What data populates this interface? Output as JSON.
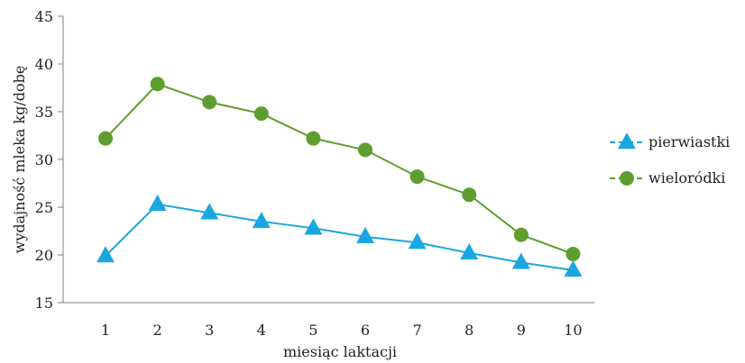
{
  "chart_data": {
    "type": "line",
    "title": "",
    "xlabel": "miesiąc laktacji",
    "ylabel": "wydajność mleka kg/dobę",
    "categories": [
      "1",
      "2",
      "3",
      "4",
      "5",
      "6",
      "7",
      "8",
      "9",
      "10"
    ],
    "ylim": [
      15,
      45
    ],
    "yticks": [
      15,
      20,
      25,
      30,
      35,
      40,
      45
    ],
    "grid": false,
    "legend_position": "right",
    "series": [
      {
        "name": "pierwiastki",
        "color": "#1aa6e0",
        "marker": "triangle",
        "values": [
          19.9,
          25.3,
          24.4,
          23.5,
          22.8,
          21.9,
          21.3,
          20.2,
          19.2,
          18.4
        ]
      },
      {
        "name": "wieloródki",
        "color": "#5e9e2e",
        "marker": "circle",
        "values": [
          32.2,
          37.9,
          36.0,
          34.8,
          32.2,
          31.0,
          28.2,
          26.3,
          22.1,
          20.1
        ]
      }
    ]
  }
}
